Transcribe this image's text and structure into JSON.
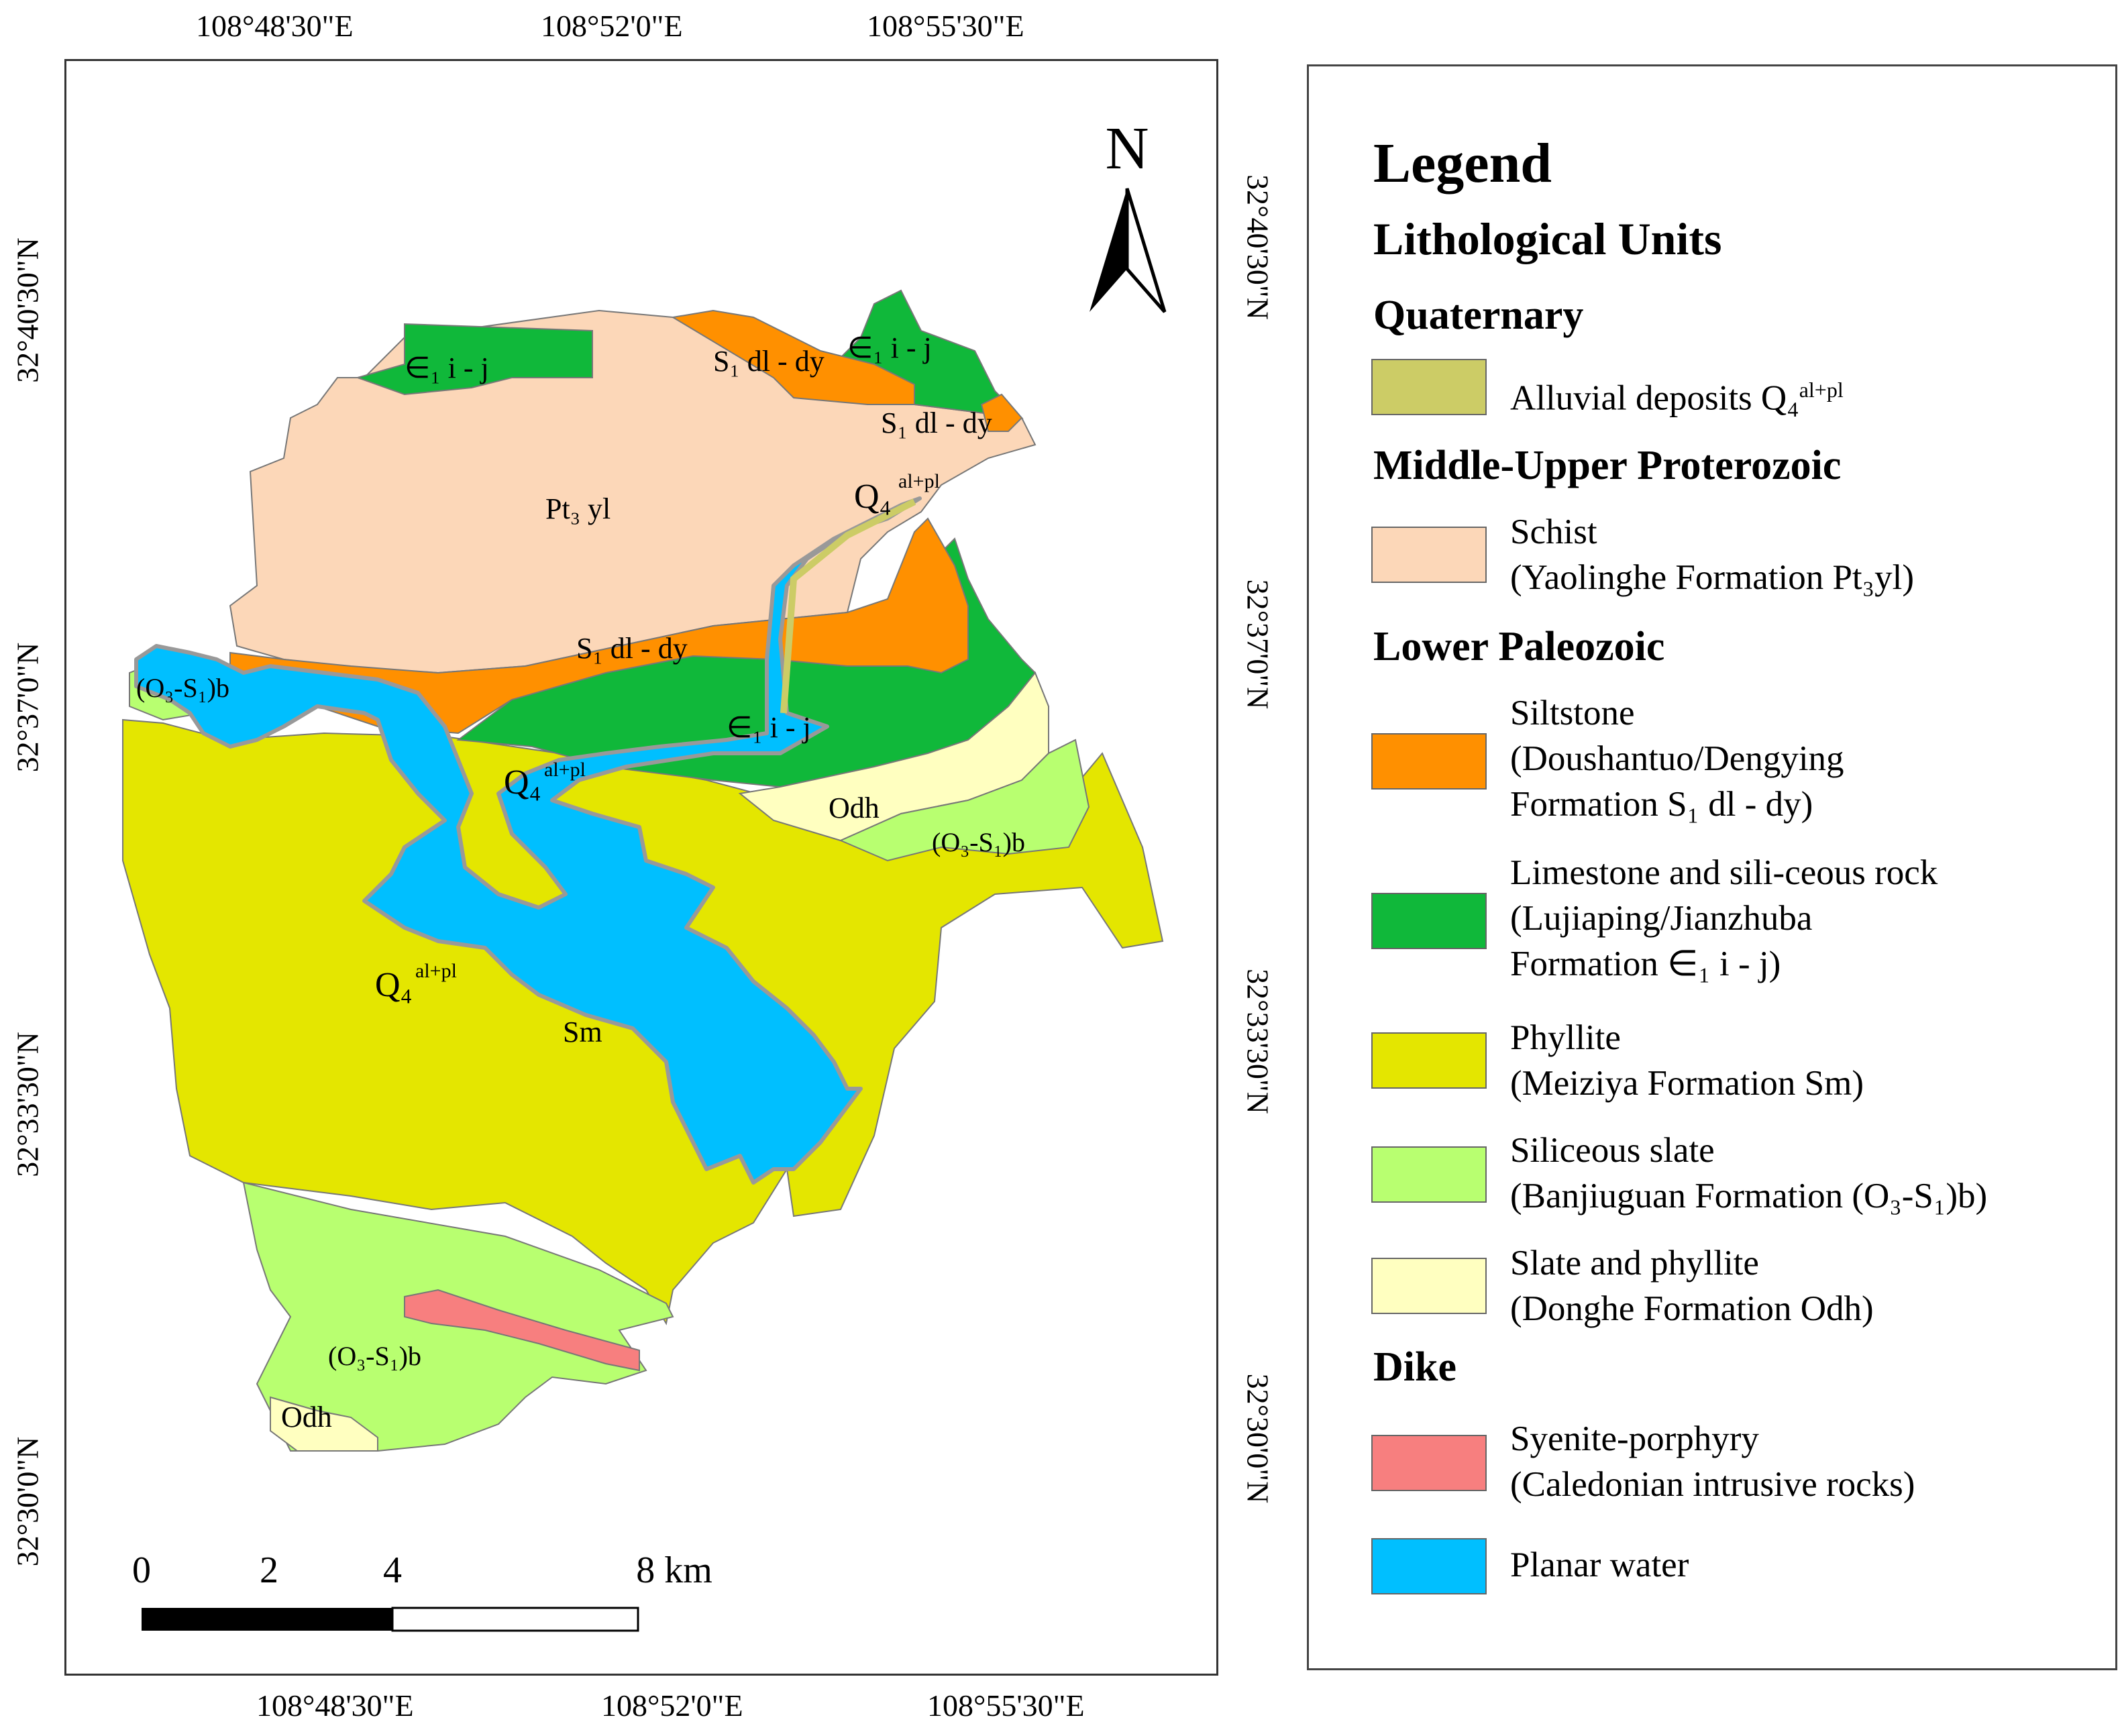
{
  "map": {
    "top_ticks": [
      "108°48'30\"E",
      "108°52'0\"E",
      "108°55'30\"E"
    ],
    "bottom_ticks": [
      "108°48'30\"E",
      "108°52'0\"E",
      "108°55'30\"E"
    ],
    "left_ticks": [
      "32°40'30\"N",
      "32°37'0\"N",
      "32°33'30\"N",
      "32°30'0\"N"
    ],
    "right_ticks": [
      "32°40'30\"N",
      "32°37'0\"N",
      "32°33'30\"N",
      "32°30'0\"N"
    ],
    "north_label": "N",
    "scale_labels": [
      "0",
      "2",
      "4",
      "8 km"
    ],
    "unit_labels": {
      "e1ij_nw": "∈₁ i - j",
      "s1dldy_n": "S₁ dl - dy",
      "e1ij_ne": "∈₁ i - j",
      "s1dldy_ne": "S₁ dl - dy",
      "pt3yl": "Pt₃ yl",
      "q4_ne": "Q₄",
      "q4_ne_sup": "al+pl",
      "s1dldy_mid": "S₁ dl - dy",
      "o3s1b_w": "(O₃-S₁)b",
      "e1ij_mid": "∈₁ i - j",
      "q4_mid": "Q₄",
      "q4_mid_sup": "al+pl",
      "odh_mid": "Odh",
      "o3s1b_e": "(O₃-S₁)b",
      "q4_sw": "Q₄",
      "q4_sw_sup": "al+pl",
      "sm": "Sm",
      "o3s1b_s": "(O₃-S₁)b",
      "odh_s": "Odh"
    }
  },
  "legend": {
    "title": "Legend",
    "subtitle": "Lithological Units",
    "sections": {
      "quaternary": "Quaternary",
      "proterozoic": "Middle-Upper Proterozoic",
      "paleozoic": "Lower Paleozoic",
      "dike": "Dike"
    },
    "items": [
      {
        "line1": "Alluvial deposits Q₄",
        "sup": "al+pl",
        "color": "#cccc66"
      },
      {
        "line1": "Schist",
        "line2": "(Yaolinghe Formation Pt₃yl)",
        "color": "#fcd7b8"
      },
      {
        "line1": "Siltstone",
        "line2": "(Doushantuo/Dengying",
        "line3": " Formation S₁ dl - dy)",
        "color": "#ff9000"
      },
      {
        "line1": "Limestone and sili-ceous rock",
        "line2": "(Lujiaping/Jianzhuba",
        "line3": " Formation ∈₁ i - j)",
        "color": "#10b83a"
      },
      {
        "line1": "Phyllite",
        "line2": "(Meiziya Formation Sm)",
        "color": "#e4e600"
      },
      {
        "line1": "Siliceous slate",
        "line2": "(Banjiuguan Formation (O₃-S₁)b)",
        "color": "#b8ff70"
      },
      {
        "line1": "Slate and phyllite",
        "line2": "(Donghe Formation Odh)",
        "color": "#ffffc0"
      },
      {
        "line1": "Syenite-porphyry",
        "line2": "(Caledonian intrusive rocks)",
        "color": "#f77f7f"
      },
      {
        "line1": "Planar water",
        "color": "#00bfff"
      }
    ]
  }
}
